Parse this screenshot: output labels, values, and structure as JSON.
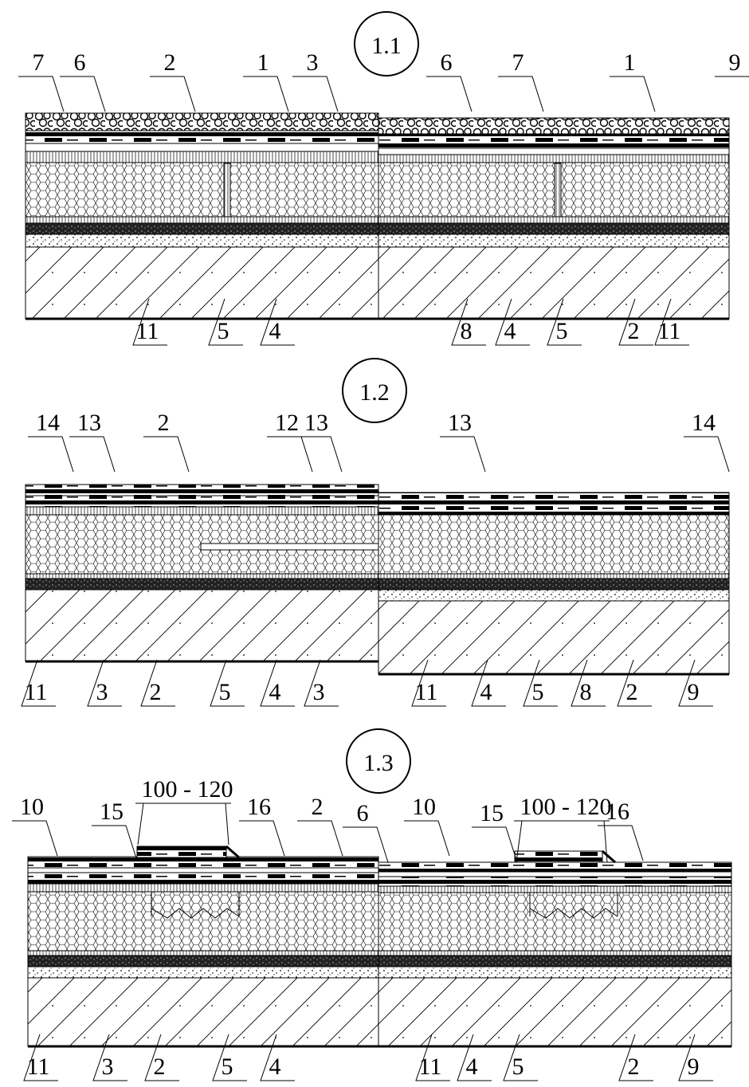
{
  "sections": [
    {
      "title": "1.1",
      "top_labels": [
        "7",
        "6",
        "2",
        "1",
        "3",
        "6",
        "7",
        "1",
        "9"
      ],
      "bottom_labels": [
        "11",
        "5",
        "4",
        "8",
        "4",
        "5",
        "2",
        "11"
      ]
    },
    {
      "title": "1.2",
      "top_labels": [
        "14",
        "13",
        "2",
        "12",
        "13",
        "13",
        "14"
      ],
      "bottom_labels": [
        "11",
        "3",
        "2",
        "5",
        "4",
        "3",
        "11",
        "4",
        "5",
        "8",
        "2",
        "9"
      ]
    },
    {
      "title": "1.3",
      "top_labels": [
        "10",
        "15",
        "16",
        "2",
        "6",
        "10",
        "15",
        "16"
      ],
      "dimensions": [
        "100 - 120",
        "100 - 120"
      ],
      "bottom_labels": [
        "11",
        "3",
        "2",
        "5",
        "4",
        "11",
        "4",
        "5",
        "2",
        "9"
      ]
    }
  ]
}
